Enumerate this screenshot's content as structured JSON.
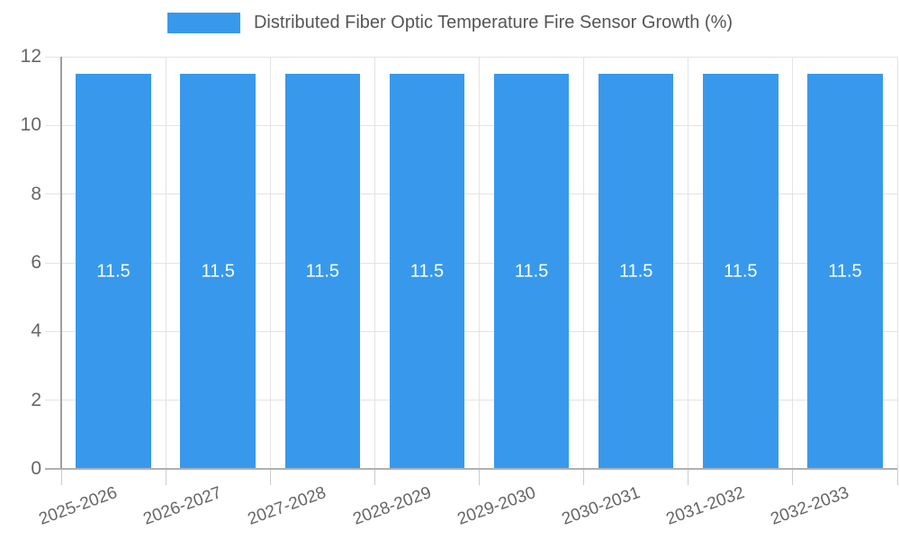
{
  "chart_data": {
    "type": "bar",
    "title": "Distributed Fiber Optic Temperature Fire Sensor Growth (%)",
    "legend_position": "top",
    "categories": [
      "2025-2026",
      "2026-2027",
      "2027-2028",
      "2028-2029",
      "2029-2030",
      "2030-2031",
      "2031-2032",
      "2032-2033"
    ],
    "values": [
      11.5,
      11.5,
      11.5,
      11.5,
      11.5,
      11.5,
      11.5,
      11.5
    ],
    "value_labels": [
      "11.5",
      "11.5",
      "11.5",
      "11.5",
      "11.5",
      "11.5",
      "11.5",
      "11.5"
    ],
    "xlabel": "",
    "ylabel": "",
    "ylim": [
      0,
      12
    ],
    "yticks": [
      0,
      2,
      4,
      6,
      8,
      10,
      12
    ],
    "ytick_labels": [
      "0",
      "2",
      "4",
      "6",
      "8",
      "10",
      "12"
    ],
    "grid": true,
    "xtick_rotation_deg": -20,
    "colors": {
      "bar": "#3899ec",
      "value_label": "#ffffff",
      "grid": "#e3e3e3",
      "x_axis": "#b0b0b0",
      "y_axis": "#9e9e9e",
      "tick_text": "#666666",
      "legend_text": "#555555",
      "background": "#ffffff"
    }
  }
}
